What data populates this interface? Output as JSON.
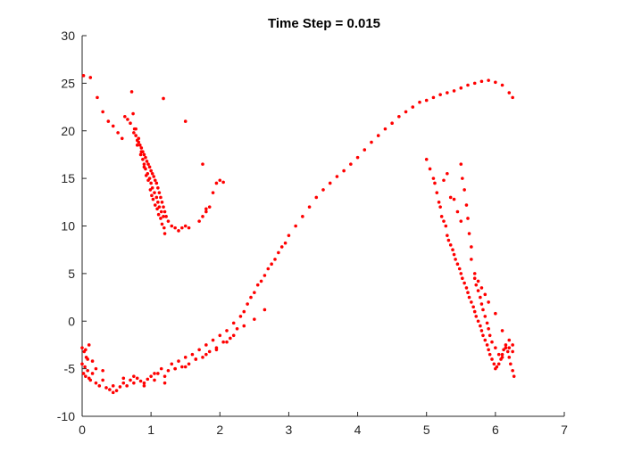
{
  "chart_data": {
    "type": "scatter",
    "title": "Time Step = 0.015",
    "xlabel": "",
    "ylabel": "",
    "xlim": [
      0,
      7
    ],
    "ylim": [
      -10,
      30
    ],
    "x_ticks": [
      "0",
      "1",
      "2",
      "3",
      "4",
      "5",
      "6",
      "7"
    ],
    "y_ticks": [
      "-10",
      "-5",
      "0",
      "5",
      "10",
      "15",
      "20",
      "25",
      "30"
    ],
    "grid": false,
    "legend": "none",
    "marker_color": "#ff0000",
    "series": [
      {
        "x": [
          0.0,
          0.03,
          0.05,
          0.08,
          0.1,
          0.15,
          0.2,
          0.25,
          0.3,
          0.35,
          0.4,
          0.45,
          0.5,
          0.55,
          0.6,
          0.65,
          0.7,
          0.75,
          0.8,
          0.85,
          0.9,
          0.95,
          1.0,
          1.05,
          1.1,
          1.15,
          1.2,
          1.25,
          1.3,
          1.35,
          1.4,
          1.45,
          1.5,
          1.55,
          1.6,
          1.65,
          1.7,
          1.75,
          1.8,
          1.85,
          1.9,
          1.95,
          2.0,
          2.05,
          2.1,
          2.15,
          2.2,
          2.25,
          2.3,
          2.35,
          2.4,
          2.45,
          2.5,
          2.55,
          2.6,
          2.65,
          2.7,
          2.75,
          2.8,
          2.85,
          2.9,
          2.95,
          3.0,
          3.1,
          3.2,
          3.3,
          3.4,
          3.5,
          3.6,
          3.7,
          3.8,
          3.9,
          4.0,
          4.1,
          4.2,
          4.3,
          4.4,
          4.5,
          4.6,
          4.7,
          4.8,
          4.9,
          5.0,
          5.1,
          5.2,
          5.3,
          5.4,
          5.5,
          5.6,
          5.7,
          5.8,
          5.9,
          6.0,
          6.1,
          6.2,
          6.25,
          0.05,
          0.1,
          0.15,
          0.2,
          0.02,
          0.06,
          0.12,
          0.3,
          0.45,
          0.6,
          0.75,
          0.9,
          1.05,
          1.2,
          1.35,
          1.5,
          1.65,
          1.8,
          1.95,
          2.1,
          2.2,
          2.35,
          2.5,
          2.65,
          0.0,
          0.04,
          0.08
        ],
        "y": [
          -4.5,
          -3.2,
          -5.8,
          -4.0,
          -6.0,
          -5.5,
          -6.5,
          -6.8,
          -6.2,
          -7.0,
          -7.2,
          -6.8,
          -7.3,
          -6.9,
          -6.5,
          -6.8,
          -6.2,
          -6.5,
          -6.0,
          -6.3,
          -6.5,
          -6.1,
          -5.8,
          -6.2,
          -5.5,
          -5.0,
          -5.8,
          -5.2,
          -4.5,
          -5.0,
          -4.2,
          -4.8,
          -3.8,
          -4.5,
          -3.5,
          -4.0,
          -3.0,
          -3.8,
          -2.5,
          -3.2,
          -2.0,
          -2.8,
          -1.5,
          -2.2,
          -1.0,
          -1.8,
          -0.2,
          -0.8,
          0.5,
          1.0,
          1.8,
          2.5,
          3.0,
          3.8,
          4.2,
          4.8,
          5.5,
          6.0,
          6.5,
          7.2,
          7.8,
          8.2,
          9.0,
          10.0,
          11.0,
          12.0,
          13.0,
          13.8,
          14.5,
          15.2,
          15.8,
          16.5,
          17.2,
          18.0,
          18.8,
          19.5,
          20.2,
          20.8,
          21.5,
          22.0,
          22.5,
          23.0,
          23.2,
          23.5,
          23.8,
          24.0,
          24.2,
          24.5,
          24.8,
          25.0,
          25.2,
          25.3,
          25.1,
          24.8,
          24.0,
          23.5,
          -3.0,
          -2.5,
          -4.2,
          -5.0,
          -5.5,
          -3.8,
          -6.2,
          -5.2,
          -7.5,
          -6.0,
          -5.8,
          -6.8,
          -5.5,
          -6.5,
          -5.0,
          -4.8,
          -4.0,
          -3.5,
          -3.0,
          -2.2,
          -1.5,
          -0.5,
          0.2,
          1.2,
          -2.8,
          -4.8,
          -5.2
        ]
      },
      {
        "x": [
          0.02,
          0.12,
          0.22,
          0.3,
          0.38,
          0.45,
          0.52,
          0.58,
          0.62,
          0.66,
          0.7,
          0.74,
          0.76,
          0.78,
          0.8,
          0.82,
          0.84,
          0.86,
          0.88,
          0.9,
          0.92,
          0.94,
          0.96,
          0.98,
          1.0,
          1.02,
          1.04,
          1.06,
          1.08,
          1.1,
          1.12,
          1.14,
          1.16,
          1.18,
          1.2,
          1.22,
          1.25,
          1.3,
          1.35,
          1.4,
          1.45,
          1.5,
          1.55,
          1.7,
          1.75,
          1.8,
          1.85,
          1.9,
          1.95,
          2.0,
          2.05,
          0.75,
          0.8,
          0.85,
          0.9,
          0.92,
          0.95,
          0.98,
          1.0,
          1.02,
          1.05,
          1.08,
          1.1,
          1.12,
          1.15,
          1.18,
          0.78,
          0.82,
          0.86,
          0.88,
          0.9,
          0.93,
          0.96,
          0.99,
          1.01,
          1.03,
          1.06,
          1.09,
          1.11,
          1.14,
          1.16,
          1.19,
          1.2,
          1.5,
          1.75,
          1.8,
          1.18,
          0.72
        ],
        "y": [
          25.8,
          25.6,
          23.5,
          22.0,
          21.0,
          20.5,
          19.8,
          19.2,
          21.5,
          21.2,
          20.8,
          21.8,
          20.2,
          19.5,
          19.0,
          18.8,
          18.5,
          18.2,
          17.8,
          17.5,
          17.2,
          16.8,
          16.5,
          16.2,
          15.8,
          15.5,
          15.2,
          14.8,
          14.5,
          14.0,
          13.5,
          13.0,
          12.5,
          12.0,
          11.5,
          11.0,
          10.5,
          10.0,
          9.8,
          9.5,
          9.8,
          10.0,
          9.8,
          10.5,
          11.0,
          11.5,
          12.0,
          13.5,
          14.5,
          14.8,
          14.6,
          19.8,
          18.5,
          17.5,
          16.5,
          16.0,
          15.5,
          15.0,
          14.5,
          14.0,
          13.5,
          13.0,
          12.5,
          12.0,
          11.5,
          11.0,
          20.2,
          19.2,
          17.8,
          17.0,
          16.2,
          15.3,
          14.8,
          13.8,
          13.2,
          12.8,
          12.2,
          11.8,
          11.2,
          10.8,
          10.2,
          9.8,
          9.2,
          21.0,
          16.5,
          11.8,
          23.4,
          24.1
        ]
      },
      {
        "x": [
          5.0,
          5.05,
          5.1,
          5.12,
          5.15,
          5.18,
          5.2,
          5.22,
          5.25,
          5.28,
          5.3,
          5.32,
          5.35,
          5.38,
          5.4,
          5.42,
          5.45,
          5.48,
          5.5,
          5.52,
          5.55,
          5.58,
          5.6,
          5.62,
          5.65,
          5.68,
          5.7,
          5.72,
          5.75,
          5.78,
          5.8,
          5.82,
          5.85,
          5.88,
          5.9,
          5.92,
          5.95,
          5.98,
          6.0,
          6.02,
          6.05,
          6.08,
          6.1,
          6.12,
          6.15,
          6.18,
          6.2,
          6.22,
          6.25,
          6.27,
          5.5,
          5.52,
          5.55,
          5.58,
          5.6,
          5.62,
          5.65,
          5.7,
          5.72,
          5.75,
          5.78,
          5.8,
          5.82,
          5.85,
          5.88,
          5.9,
          5.92,
          5.95,
          6.0,
          6.05,
          6.1,
          6.15,
          6.2,
          6.25,
          5.25,
          5.35,
          5.45,
          5.3,
          5.4,
          5.5,
          5.65,
          5.7,
          5.75,
          5.8,
          5.85,
          5.9,
          6.0,
          6.1,
          6.2,
          6.25
        ],
        "y": [
          17.0,
          16.0,
          15.0,
          14.5,
          13.5,
          12.5,
          12.0,
          11.0,
          10.5,
          10.0,
          9.0,
          8.5,
          8.0,
          7.5,
          7.0,
          6.5,
          6.0,
          5.5,
          5.0,
          4.5,
          4.0,
          3.5,
          3.0,
          2.5,
          2.0,
          1.5,
          1.0,
          0.5,
          0.0,
          -0.5,
          -1.0,
          -1.5,
          -2.0,
          -2.5,
          -3.0,
          -3.5,
          -4.0,
          -4.5,
          -5.0,
          -4.8,
          -4.5,
          -4.0,
          -3.5,
          -3.0,
          -2.8,
          -3.2,
          -3.8,
          -4.5,
          -5.2,
          -5.8,
          16.5,
          15.0,
          13.8,
          12.2,
          10.8,
          9.2,
          7.8,
          4.5,
          3.8,
          3.2,
          2.5,
          1.8,
          1.2,
          0.5,
          -0.2,
          -0.8,
          -1.5,
          -2.2,
          -2.8,
          -3.5,
          -3.8,
          -2.5,
          -2.0,
          -2.5,
          14.8,
          13.0,
          11.5,
          15.5,
          12.8,
          10.5,
          6.5,
          5.0,
          4.2,
          3.5,
          2.8,
          2.0,
          0.8,
          -1.0,
          -2.8,
          -3.2
        ]
      }
    ]
  }
}
